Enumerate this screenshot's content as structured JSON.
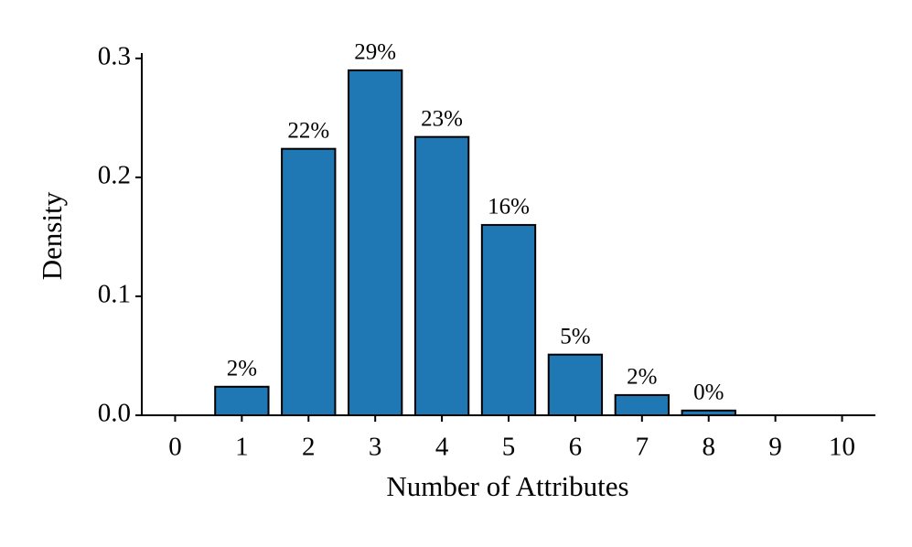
{
  "chart_data": {
    "type": "bar",
    "x_label": "Number of Attributes",
    "y_label": "Density",
    "categories": [
      "0",
      "1",
      "2",
      "3",
      "4",
      "5",
      "6",
      "7",
      "8",
      "9",
      "10"
    ],
    "values": [
      0,
      0.024,
      0.224,
      0.29,
      0.234,
      0.16,
      0.051,
      0.017,
      0.004,
      0,
      0
    ],
    "value_labels": [
      null,
      "2%",
      "22%",
      "29%",
      "23%",
      "16%",
      "5%",
      "2%",
      "0%",
      null,
      null
    ],
    "color": "#1f77b4",
    "ylim": [
      0,
      0.3045
    ],
    "yticks": [
      {
        "value": 0,
        "label": "0.0"
      },
      0.1,
      0.2,
      0.3
    ],
    "grid": false
  }
}
